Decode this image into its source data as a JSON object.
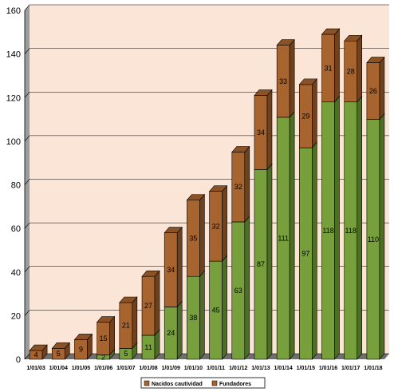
{
  "chart_data": {
    "type": "bar",
    "stacked": true,
    "three_d": true,
    "categories": [
      "1/01/03",
      "1/01/04",
      "1/01/05",
      "1/01/06",
      "1/01/07",
      "1/01/08",
      "1/01/09",
      "1/01/10",
      "1/01/11",
      "1/01/12",
      "1/01/13",
      "1/01/14",
      "1/01/15",
      "1/01/16",
      "1/01/17",
      "1/01/18"
    ],
    "series": [
      {
        "name": "Nacidos cautividad",
        "color": "#77a03c",
        "values": [
          0,
          0,
          0,
          2,
          5,
          11,
          24,
          38,
          45,
          63,
          87,
          111,
          97,
          118,
          118,
          110
        ],
        "labels": [
          "0",
          "0",
          "0",
          "2",
          "5",
          "11",
          "24",
          "38",
          "45",
          "63",
          "87",
          "111",
          "97",
          "118",
          "118",
          "110"
        ]
      },
      {
        "name": "Fundadores",
        "color": "#a8642e",
        "values": [
          4,
          5,
          9,
          15,
          21,
          27,
          34,
          35,
          32,
          32,
          34,
          33,
          29,
          31,
          28,
          26
        ],
        "labels": [
          "4",
          "5",
          "9",
          "15",
          "21",
          "27",
          "34",
          "35",
          "32",
          "32",
          "34",
          "33",
          "29",
          "31",
          "28",
          "26"
        ]
      }
    ],
    "y_ticks": [
      "0",
      "20",
      "40",
      "60",
      "80",
      "100",
      "120",
      "140",
      "160"
    ],
    "ylim": [
      0,
      160
    ],
    "grid": true,
    "legend_position": "bottom",
    "title": "",
    "xlabel": "",
    "ylabel": ""
  }
}
